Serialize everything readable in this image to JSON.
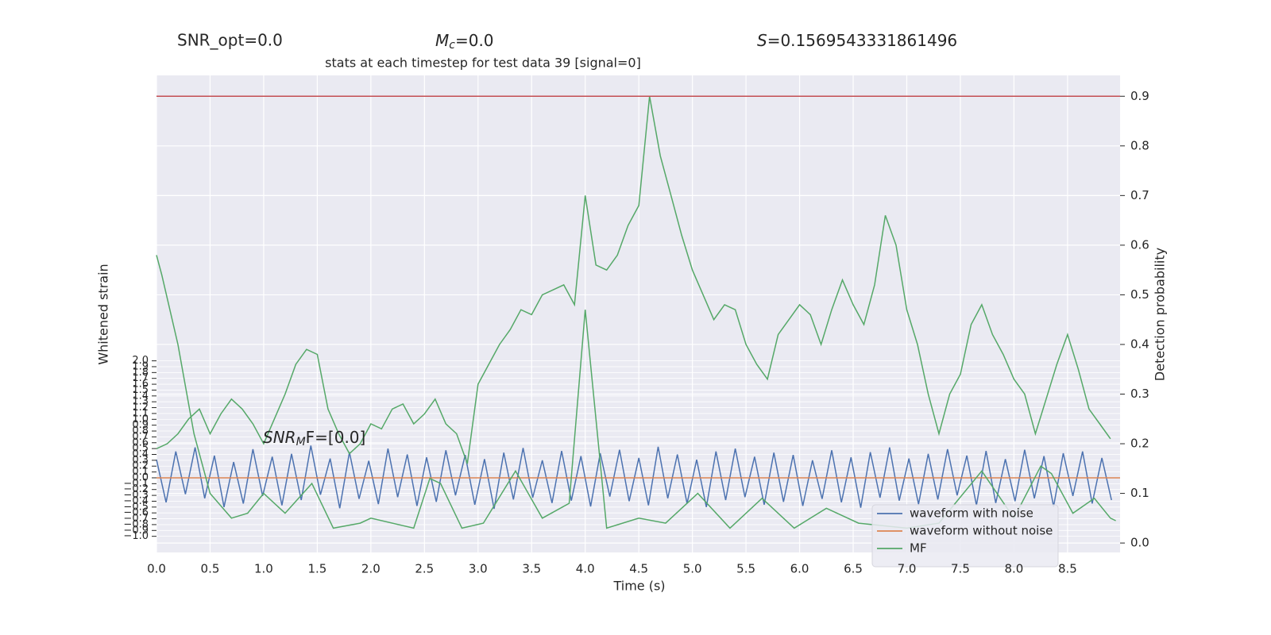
{
  "chart_data": {
    "type": "line",
    "title": "stats at each timestep for test data 39 [signal=0]",
    "annotations": {
      "snr_opt": "SNR_opt=0.0",
      "mc": {
        "symbol": "M",
        "subscript": "c",
        "text": "=0.0"
      },
      "s": {
        "symbol": "S",
        "text": "=0.1569543331861496"
      },
      "snr_mf": {
        "symbol": "SNR",
        "subscript": "M",
        "text": "F=[0.0]"
      }
    },
    "xlabel": "Time (s)",
    "ylabel": "Whitened strain",
    "y2label": "Detection probability",
    "xlim": [
      0,
      8.99
    ],
    "ylim": [
      -1.276,
      6.88
    ],
    "y2lim": [
      -0.019,
      0.942
    ],
    "xticks": [
      {
        "value": 0,
        "label": "0.0"
      },
      {
        "value": 0.5,
        "label": "0.5"
      },
      {
        "value": 1,
        "label": "1.0"
      },
      {
        "value": 1.5,
        "label": "1.5"
      },
      {
        "value": 2,
        "label": "2.0"
      },
      {
        "value": 2.5,
        "label": "2.5"
      },
      {
        "value": 3,
        "label": "3.0"
      },
      {
        "value": 3.5,
        "label": "3.5"
      },
      {
        "value": 4,
        "label": "4.0"
      },
      {
        "value": 4.5,
        "label": "4.5"
      },
      {
        "value": 5,
        "label": "5.0"
      },
      {
        "value": 5.5,
        "label": "5.5"
      },
      {
        "value": 6,
        "label": "6.0"
      },
      {
        "value": 6.5,
        "label": "6.5"
      },
      {
        "value": 7,
        "label": "7.0"
      },
      {
        "value": 7.5,
        "label": "7.5"
      },
      {
        "value": 8,
        "label": "8.0"
      },
      {
        "value": 8.5,
        "label": "8.5"
      }
    ],
    "yticks": [
      {
        "value": 2,
        "label": "2.0"
      },
      {
        "value": 1.9,
        "label": "1.9"
      },
      {
        "value": 1.8,
        "label": "1.8"
      },
      {
        "value": 1.7,
        "label": "1.7"
      },
      {
        "value": 1.6,
        "label": "1.6"
      },
      {
        "value": 1.5,
        "label": "1.5"
      },
      {
        "value": 1.4,
        "label": "1.4"
      },
      {
        "value": 1.3,
        "label": "1.3"
      },
      {
        "value": 1.2,
        "label": "1.2"
      },
      {
        "value": 1.1,
        "label": "1.1"
      },
      {
        "value": 1,
        "label": "1.0"
      },
      {
        "value": 0.9,
        "label": "0.9"
      },
      {
        "value": 0.8,
        "label": "0.8"
      },
      {
        "value": 0.7,
        "label": "0.7"
      },
      {
        "value": 0.6,
        "label": "0.6"
      },
      {
        "value": 0.5,
        "label": "0.5"
      },
      {
        "value": 0.4,
        "label": "0.4"
      },
      {
        "value": 0.3,
        "label": "0.3"
      },
      {
        "value": 0.2,
        "label": "0.2"
      },
      {
        "value": 0.1,
        "label": "0.1"
      },
      {
        "value": 0,
        "label": "0.0"
      },
      {
        "value": -0.1,
        "label": "−0.1"
      },
      {
        "value": -0.2,
        "label": "−0.2"
      },
      {
        "value": -0.3,
        "label": "−0.3"
      },
      {
        "value": -0.4,
        "label": "−0.4"
      },
      {
        "value": -0.5,
        "label": "−0.5"
      },
      {
        "value": -0.6,
        "label": "−0.6"
      },
      {
        "value": -0.7,
        "label": "−0.7"
      },
      {
        "value": -0.8,
        "label": "−0.8"
      },
      {
        "value": -0.9,
        "label": "−0.9"
      },
      {
        "value": -1,
        "label": "−1.0"
      }
    ],
    "y2ticks": [
      {
        "value": 0,
        "label": "0.0"
      },
      {
        "value": 0.1,
        "label": "0.1"
      },
      {
        "value": 0.2,
        "label": "0.2"
      },
      {
        "value": 0.3,
        "label": "0.3"
      },
      {
        "value": 0.4,
        "label": "0.4"
      },
      {
        "value": 0.5,
        "label": "0.5"
      },
      {
        "value": 0.6,
        "label": "0.6"
      },
      {
        "value": 0.7,
        "label": "0.7"
      },
      {
        "value": 0.8,
        "label": "0.8"
      },
      {
        "value": 0.9,
        "label": "0.9"
      }
    ],
    "grid": true,
    "legend": "lower right",
    "threshold": {
      "value": 0.9,
      "color": "#c44e52",
      "axis": "y2"
    },
    "series": [
      {
        "name": "waveform with noise",
        "color": "#4c72b0",
        "x": [
          0,
          0.09,
          0.18,
          0.27,
          0.36,
          0.45,
          0.54,
          0.63,
          0.72,
          0.81,
          0.9,
          0.99,
          1.08,
          1.17,
          1.26,
          1.35,
          1.44,
          1.53,
          1.62,
          1.71,
          1.8,
          1.89,
          1.98,
          2.07,
          2.16,
          2.25,
          2.34,
          2.43,
          2.52,
          2.61,
          2.7,
          2.79,
          2.88,
          2.97,
          3.06,
          3.15,
          3.24,
          3.33,
          3.42,
          3.51,
          3.6,
          3.69,
          3.78,
          3.87,
          3.96,
          4.05,
          4.14,
          4.23,
          4.32,
          4.41,
          4.5,
          4.59,
          4.68,
          4.77,
          4.86,
          4.95,
          5.04,
          5.13,
          5.22,
          5.31,
          5.4,
          5.49,
          5.58,
          5.67,
          5.76,
          5.85,
          5.94,
          6.03,
          6.12,
          6.21,
          6.3,
          6.39,
          6.48,
          6.57,
          6.66,
          6.75,
          6.84,
          6.93,
          7.02,
          7.11,
          7.2,
          7.29,
          7.38,
          7.47,
          7.56,
          7.65,
          7.74,
          7.83,
          7.92,
          8.01,
          8.1,
          8.19,
          8.28,
          8.37,
          8.46,
          8.55,
          8.64,
          8.73,
          8.82,
          8.91
        ],
        "values": [
          0.31,
          -0.42,
          0.45,
          -0.28,
          0.52,
          -0.35,
          0.38,
          -0.5,
          0.27,
          -0.44,
          0.49,
          -0.31,
          0.36,
          -0.47,
          0.41,
          -0.38,
          0.55,
          -0.29,
          0.33,
          -0.52,
          0.44,
          -0.36,
          0.29,
          -0.45,
          0.5,
          -0.33,
          0.4,
          -0.48,
          0.35,
          -0.41,
          0.47,
          -0.3,
          0.39,
          -0.46,
          0.32,
          -0.53,
          0.43,
          -0.37,
          0.51,
          -0.34,
          0.3,
          -0.43,
          0.46,
          -0.39,
          0.37,
          -0.49,
          0.42,
          -0.32,
          0.48,
          -0.4,
          0.34,
          -0.47,
          0.53,
          -0.35,
          0.4,
          -0.44,
          0.31,
          -0.5,
          0.45,
          -0.38,
          0.5,
          -0.33,
          0.36,
          -0.46,
          0.43,
          -0.41,
          0.39,
          -0.48,
          0.3,
          -0.36,
          0.47,
          -0.42,
          0.35,
          -0.51,
          0.44,
          -0.34,
          0.52,
          -0.39,
          0.33,
          -0.45,
          0.41,
          -0.37,
          0.49,
          -0.3,
          0.38,
          -0.47,
          0.46,
          -0.43,
          0.32,
          -0.4,
          0.48,
          -0.35,
          0.37,
          -0.49,
          0.42,
          -0.31,
          0.45,
          -0.44,
          0.34,
          -0.38
        ]
      },
      {
        "name": "waveform without noise",
        "color": "#dd8452",
        "x": [
          0,
          8.99
        ],
        "values": [
          0,
          0
        ]
      },
      {
        "name": "MF",
        "color": "#55a868",
        "axis": "y2",
        "x": [
          0,
          0.05,
          0.2,
          0.35,
          0.5,
          0.7,
          0.85,
          1.0,
          1.2,
          1.45,
          1.65,
          1.9,
          2.0,
          2.4,
          2.55,
          2.65,
          2.85,
          3.05,
          3.35,
          3.6,
          3.85,
          4.0,
          4.2,
          4.5,
          4.75,
          5.05,
          5.35,
          5.65,
          5.95,
          6.25,
          6.55,
          7.0,
          7.3,
          7.7,
          8.0,
          8.25,
          8.35,
          8.55,
          8.75,
          8.9,
          8.95
        ],
        "values": [
          0.58,
          0.54,
          0.4,
          0.22,
          0.1,
          0.05,
          0.06,
          0.1,
          0.06,
          0.12,
          0.03,
          0.04,
          0.05,
          0.03,
          0.13,
          0.12,
          0.03,
          0.04,
          0.145,
          0.05,
          0.08,
          0.47,
          0.03,
          0.05,
          0.04,
          0.1,
          0.03,
          0.09,
          0.03,
          0.07,
          0.04,
          0.03,
          0.04,
          0.145,
          0.05,
          0.155,
          0.14,
          0.06,
          0.09,
          0.05,
          0.045
        ]
      },
      {
        "color": "#55a868",
        "axis": "y2",
        "x": [
          0,
          0.1,
          0.2,
          0.3,
          0.4,
          0.5,
          0.6,
          0.7,
          0.8,
          0.9,
          1,
          1.1,
          1.2,
          1.3,
          1.4,
          1.5,
          1.6,
          1.7,
          1.8,
          1.9,
          2,
          2.1,
          2.2,
          2.3,
          2.4,
          2.5,
          2.6,
          2.7,
          2.8,
          2.9,
          3,
          3.1,
          3.2,
          3.3,
          3.4,
          3.5,
          3.6,
          3.7,
          3.8,
          3.9,
          4,
          4.1,
          4.2,
          4.3,
          4.4,
          4.5,
          4.6,
          4.7,
          4.8,
          4.9,
          5,
          5.1,
          5.2,
          5.3,
          5.4,
          5.5,
          5.6,
          5.7,
          5.8,
          5.9,
          6,
          6.1,
          6.2,
          6.3,
          6.4,
          6.5,
          6.6,
          6.7,
          6.8,
          6.9,
          7,
          7.1,
          7.2,
          7.3,
          7.4,
          7.5,
          7.6,
          7.7,
          7.8,
          7.9,
          8,
          8.1,
          8.2,
          8.3,
          8.4,
          8.5,
          8.6,
          8.7,
          8.8,
          8.9
        ],
        "values": [
          0.19,
          0.2,
          0.22,
          0.25,
          0.27,
          0.22,
          0.26,
          0.29,
          0.27,
          0.24,
          0.2,
          0.25,
          0.3,
          0.36,
          0.39,
          0.38,
          0.27,
          0.22,
          0.18,
          0.2,
          0.24,
          0.23,
          0.27,
          0.28,
          0.24,
          0.26,
          0.29,
          0.24,
          0.22,
          0.16,
          0.32,
          0.36,
          0.4,
          0.43,
          0.47,
          0.46,
          0.5,
          0.51,
          0.52,
          0.48,
          0.7,
          0.56,
          0.55,
          0.58,
          0.64,
          0.68,
          0.9,
          0.78,
          0.7,
          0.62,
          0.55,
          0.5,
          0.45,
          0.48,
          0.47,
          0.4,
          0.36,
          0.33,
          0.42,
          0.45,
          0.48,
          0.46,
          0.4,
          0.47,
          0.53,
          0.48,
          0.44,
          0.52,
          0.66,
          0.6,
          0.47,
          0.4,
          0.3,
          0.22,
          0.3,
          0.34,
          0.44,
          0.48,
          0.42,
          0.38,
          0.33,
          0.3,
          0.22,
          0.29,
          0.36,
          0.42,
          0.35,
          0.27,
          0.24,
          0.21
        ]
      }
    ]
  }
}
